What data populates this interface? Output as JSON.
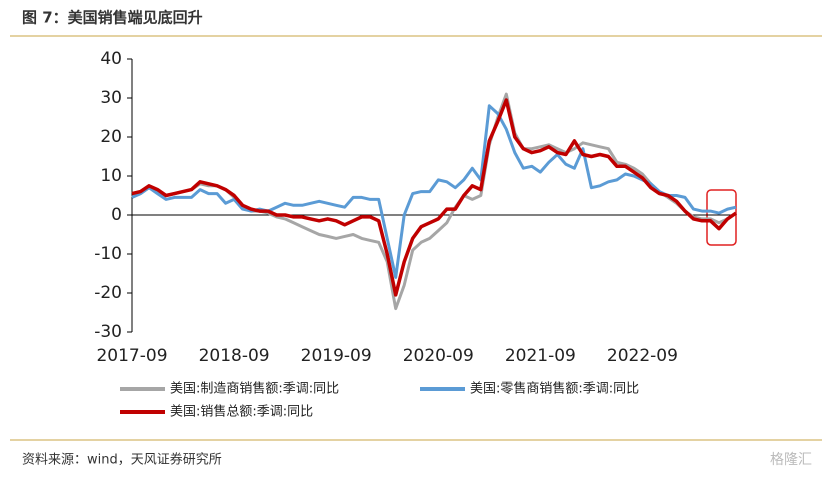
{
  "header": {
    "title": "图 7：美国销售端见底回升"
  },
  "footer": {
    "source": "资料来源：wind，天风证券研究所",
    "watermark": "格隆汇"
  },
  "chart_data": {
    "type": "line",
    "categories": [
      "2017-09",
      null,
      null,
      null,
      null,
      null,
      null,
      null,
      null,
      null,
      null,
      null,
      "2018-09",
      null,
      null,
      null,
      null,
      null,
      null,
      null,
      null,
      null,
      null,
      null,
      "2019-09",
      null,
      null,
      null,
      null,
      null,
      null,
      null,
      null,
      null,
      null,
      null,
      "2020-09",
      null,
      null,
      null,
      null,
      null,
      null,
      null,
      null,
      null,
      null,
      null,
      "2021-09",
      null,
      null,
      null,
      null,
      null,
      null,
      null,
      null,
      null,
      null,
      null,
      "2022-09",
      null,
      null,
      null,
      null,
      null,
      null,
      null,
      null,
      null,
      null,
      null
    ],
    "series": [
      {
        "name": "美国:制造商销售额:季调:同比",
        "color": "#a6a6a6",
        "values": [
          4.5,
          5.5,
          7,
          6,
          5,
          5.5,
          6,
          6.5,
          8,
          7.5,
          7.5,
          6.5,
          4.5,
          2,
          1,
          1,
          0.5,
          -0.5,
          -1,
          -2,
          -3,
          -4,
          -5,
          -5.5,
          -6,
          -5.5,
          -5,
          -6,
          -6.5,
          -7,
          -12,
          -24,
          -18,
          -9,
          -7,
          -6,
          -4,
          -2,
          2,
          5,
          4,
          5,
          18,
          25,
          31,
          21,
          17,
          17,
          17.5,
          18,
          17,
          16,
          17,
          18.5,
          18,
          17.5,
          17,
          13.5,
          13,
          12,
          10.5,
          8,
          6,
          4.5,
          3,
          1,
          -0.5,
          -1,
          -1,
          -2,
          -1,
          0.5
        ]
      },
      {
        "name": "美国:零售商销售额:季调:同比",
        "color": "#5b9bd5",
        "values": [
          4.5,
          5.5,
          7,
          5.5,
          4,
          4.5,
          4.5,
          4.5,
          6.5,
          5.5,
          5.5,
          3,
          4,
          1.5,
          1,
          1.5,
          1,
          2,
          3,
          2.5,
          2.5,
          3,
          3.5,
          3,
          2.5,
          2,
          4.5,
          4.5,
          4,
          4,
          -6,
          -16,
          0,
          5.5,
          6,
          6,
          9,
          8.5,
          7,
          9,
          12,
          9,
          28,
          26,
          22,
          16,
          12,
          12.5,
          11,
          13.5,
          15.5,
          13,
          12,
          17,
          7,
          7.5,
          8.5,
          9,
          10.5,
          10,
          9,
          8,
          6,
          5,
          5,
          4.5,
          1.5,
          1,
          1,
          0.5,
          1.5,
          2
        ]
      },
      {
        "name": "美国:销售总额:季调:同比",
        "color": "#c00000",
        "values": [
          5.5,
          6,
          7.5,
          6.5,
          5,
          5.5,
          6,
          6.5,
          8.5,
          8,
          7.5,
          6.5,
          5,
          2.5,
          1.5,
          1,
          1,
          0,
          0,
          -0.5,
          -0.5,
          -1,
          -1.5,
          -1,
          -1.5,
          -2.5,
          -1.5,
          -0.5,
          -0.5,
          -1.5,
          -10,
          -20.5,
          -12,
          -6,
          -3,
          -2,
          -1,
          1.5,
          1.5,
          5,
          7.5,
          6.5,
          19,
          24,
          29.5,
          20,
          17,
          16,
          16.5,
          17.5,
          16,
          15.5,
          19,
          15.5,
          15,
          15.5,
          15,
          12.5,
          12.5,
          11,
          9.5,
          7,
          5.5,
          5,
          3.5,
          1,
          -1,
          -1.5,
          -1.5,
          -3.5,
          -1,
          0.5
        ]
      }
    ],
    "ylim": [
      -30,
      40
    ],
    "yticks": [
      -30,
      -20,
      -10,
      0,
      10,
      20,
      30,
      40
    ]
  }
}
